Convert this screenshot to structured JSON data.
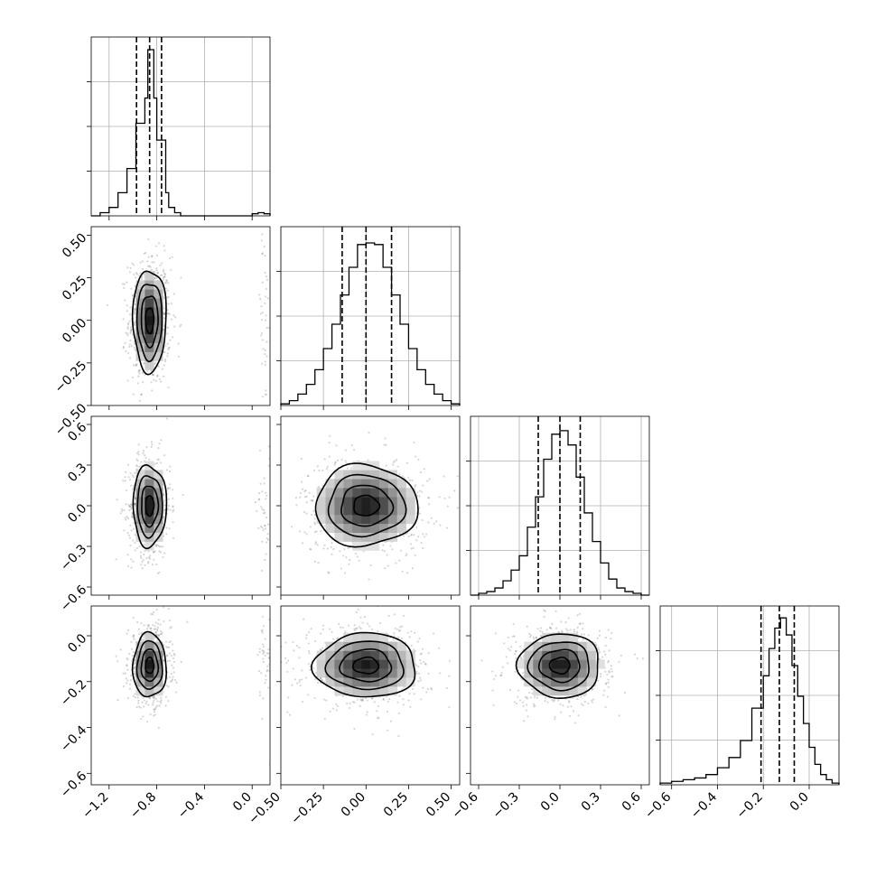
{
  "chart_data": {
    "type": "corner",
    "title": "",
    "grid": true,
    "parameters": [
      {
        "index": 0,
        "range": [
          -1.35,
          0.15
        ],
        "ticks": [
          -1.2,
          -0.8,
          -0.4,
          0.0
        ],
        "tick_labels": [
          "−1.2",
          "−0.8",
          "−0.4",
          "0.0"
        ]
      },
      {
        "index": 1,
        "range": [
          -0.5,
          0.55
        ],
        "ticks": [
          -0.5,
          -0.25,
          0.0,
          0.25,
          0.5
        ],
        "tick_labels": [
          "−0.50",
          "−0.25",
          "0.00",
          "0.25",
          "0.50"
        ]
      },
      {
        "index": 2,
        "range": [
          -0.66,
          0.66
        ],
        "ticks": [
          -0.6,
          -0.3,
          0.0,
          0.3,
          0.6
        ],
        "tick_labels": [
          "−0.6",
          "−0.3",
          "0.0",
          "0.3",
          "0.6"
        ]
      },
      {
        "index": 3,
        "range": [
          -0.65,
          0.13
        ],
        "ticks": [
          -0.6,
          -0.4,
          -0.2,
          0.0
        ],
        "tick_labels": [
          "−0.6",
          "−0.4",
          "−0.2",
          "0.0"
        ]
      }
    ],
    "histograms": [
      {
        "param": 0,
        "bin_edges": [
          -1.35,
          -1.275,
          -1.2,
          -1.125,
          -1.05,
          -0.975,
          -0.9,
          -0.875,
          -0.85,
          -0.825,
          -0.8,
          -0.775,
          -0.75,
          -0.725,
          -0.7,
          -0.65,
          -0.6,
          -0.5,
          0.0,
          0.05,
          0.1,
          0.15
        ],
        "counts": [
          0,
          3,
          8,
          22,
          45,
          88,
          112,
          158,
          158,
          112,
          72,
          72,
          72,
          22,
          8,
          3,
          0,
          0,
          2,
          3,
          2
        ],
        "quantiles": [
          -0.97,
          -0.86,
          -0.76
        ],
        "ylim": [
          0,
          170
        ]
      },
      {
        "param": 1,
        "bin_edges": [
          -0.5,
          -0.45,
          -0.4,
          -0.35,
          -0.3,
          -0.25,
          -0.2,
          -0.15,
          -0.1,
          -0.05,
          0.0,
          0.05,
          0.1,
          0.15,
          0.2,
          0.25,
          0.3,
          0.35,
          0.4,
          0.45,
          0.5,
          0.55
        ],
        "counts": [
          1,
          3,
          7,
          13,
          22,
          35,
          50,
          68,
          85,
          99,
          100,
          99,
          85,
          68,
          50,
          35,
          22,
          13,
          7,
          3,
          1
        ],
        "quantiles": [
          -0.14,
          0.0,
          0.15
        ],
        "ylim": [
          0,
          110
        ]
      },
      {
        "param": 2,
        "bin_edges": [
          -0.66,
          -0.6,
          -0.54,
          -0.48,
          -0.42,
          -0.36,
          -0.3,
          -0.24,
          -0.18,
          -0.12,
          -0.06,
          0.0,
          0.06,
          0.12,
          0.18,
          0.24,
          0.3,
          0.36,
          0.42,
          0.48,
          0.54,
          0.6,
          0.66
        ],
        "counts": [
          0,
          1,
          2,
          4,
          8,
          14,
          22,
          38,
          55,
          76,
          90,
          92,
          84,
          66,
          46,
          30,
          18,
          9,
          4,
          2,
          1,
          0
        ],
        "quantiles": [
          -0.16,
          0.0,
          0.15
        ],
        "ylim": [
          0,
          100
        ]
      },
      {
        "param": 3,
        "bin_edges": [
          -0.65,
          -0.6,
          -0.55,
          -0.5,
          -0.45,
          -0.4,
          -0.35,
          -0.3,
          -0.25,
          -0.2,
          -0.175,
          -0.15,
          -0.125,
          -0.1,
          -0.075,
          -0.05,
          -0.025,
          0.0,
          0.025,
          0.05,
          0.075,
          0.1,
          0.13
        ],
        "counts": [
          1,
          2,
          3,
          4,
          6,
          10,
          16,
          26,
          45,
          64,
          80,
          92,
          98,
          88,
          70,
          52,
          36,
          22,
          12,
          6,
          3,
          1
        ],
        "quantiles": [
          -0.21,
          -0.13,
          -0.065
        ],
        "ylim": [
          0,
          105
        ]
      }
    ],
    "contours_2d": [
      {
        "x_param": 0,
        "y_param": 1,
        "center": [
          -0.86,
          0.0
        ],
        "sigma": [
          0.07,
          0.15
        ]
      },
      {
        "x_param": 0,
        "y_param": 2,
        "center": [
          -0.86,
          0.0
        ],
        "sigma": [
          0.07,
          0.15
        ]
      },
      {
        "x_param": 1,
        "y_param": 2,
        "center": [
          0.0,
          0.0
        ],
        "sigma": [
          0.15,
          0.15
        ]
      },
      {
        "x_param": 0,
        "y_param": 3,
        "center": [
          -0.86,
          -0.13
        ],
        "sigma": [
          0.07,
          0.07
        ]
      },
      {
        "x_param": 1,
        "y_param": 3,
        "center": [
          0.0,
          -0.13
        ],
        "sigma": [
          0.15,
          0.07
        ]
      },
      {
        "x_param": 2,
        "y_param": 3,
        "center": [
          0.0,
          -0.13
        ],
        "sigma": [
          0.15,
          0.07
        ]
      }
    ],
    "contour_levels_sigma": [
      0.5,
      1.0,
      1.5,
      2.0
    ],
    "colors": {
      "line": "#000000",
      "grid": "#b0b0b0",
      "scatter": "#444444"
    }
  }
}
